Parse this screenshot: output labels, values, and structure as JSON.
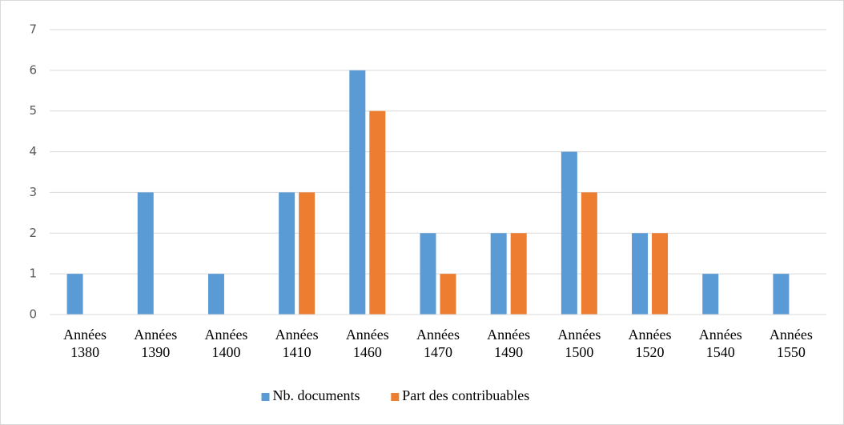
{
  "chart_data": {
    "type": "bar",
    "categories": [
      "Années 1380",
      "Années 1390",
      "Années 1400",
      "Années 1410",
      "Années 1460",
      "Années 1470",
      "Années 1490",
      "Années 1500",
      "Années 1520",
      "Années 1540",
      "Années 1550"
    ],
    "series": [
      {
        "name": "Nb. documents",
        "color": "#5b9bd5",
        "values": [
          1,
          3,
          1,
          3,
          6,
          2,
          2,
          4,
          2,
          1,
          1
        ]
      },
      {
        "name": "Part des contribuables",
        "color": "#ed7d31",
        "values": [
          0,
          0,
          0,
          3,
          5,
          1,
          2,
          3,
          2,
          0,
          0
        ]
      }
    ],
    "ylim": [
      0,
      7
    ],
    "yticks": [
      0,
      1,
      2,
      3,
      4,
      5,
      6,
      7
    ],
    "grid": true,
    "legend": "bottom"
  }
}
